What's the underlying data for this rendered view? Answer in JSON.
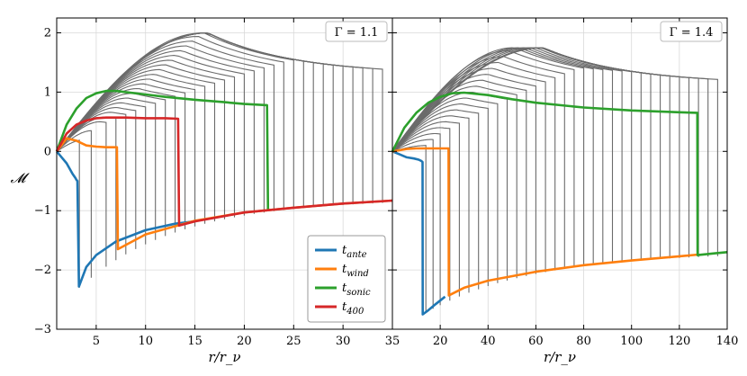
{
  "chart_data": [
    {
      "type": "line",
      "panel": "left",
      "gamma_label": "Γ = 1.1",
      "xlabel": "r/r_ν",
      "ylabel": "𝓜",
      "xlim": [
        1,
        35
      ],
      "ylim": [
        -3,
        2.25
      ],
      "xticks": [
        5,
        10,
        15,
        20,
        25,
        30,
        35
      ],
      "yticks": [
        -3,
        -2,
        -1,
        0,
        1,
        2
      ],
      "grid": true,
      "background_profiles": {
        "shock_x": [
          3.3,
          4.5,
          6.0,
          7.0,
          8.0,
          9.0,
          10.0,
          11.0,
          12.0,
          13.0,
          14.0,
          15.0,
          16.0,
          17.0,
          18.0,
          19.0,
          20.0,
          21.0,
          22.0,
          23.0,
          24.0,
          25.0,
          26.0,
          27.0,
          28.0,
          29.0,
          30.0,
          31.0,
          32.0,
          33.0,
          34.0
        ],
        "peak_values": [
          0.2,
          0.35,
          0.5,
          0.58,
          0.66,
          0.74,
          0.82,
          0.9,
          0.98,
          1.06,
          1.14,
          1.22,
          1.3,
          1.38,
          1.46,
          1.54,
          1.62,
          1.7,
          1.78,
          1.86,
          1.94,
          2.0
        ]
      },
      "series": [
        {
          "name": "t_ante",
          "color": "#1f77b4",
          "x": [
            1,
            1.5,
            2,
            2.6,
            2.9,
            3.0,
            3.1,
            3.25,
            4,
            5,
            7,
            10,
            13,
            15
          ],
          "y": [
            0,
            -0.1,
            -0.2,
            -0.38,
            -0.45,
            -0.48,
            -0.5,
            -2.28,
            -1.95,
            -1.75,
            -1.52,
            -1.33,
            -1.22,
            -1.18
          ]
        },
        {
          "name": "t_wind",
          "color": "#ff7f0e",
          "x": [
            1,
            2,
            3,
            4,
            5,
            6,
            7.1,
            7.2,
            10,
            15,
            20,
            25,
            30,
            35
          ],
          "y": [
            0,
            0.22,
            0.18,
            0.1,
            0.08,
            0.07,
            0.07,
            -1.65,
            -1.4,
            -1.17,
            -1.03,
            -0.95,
            -0.88,
            -0.83
          ]
        },
        {
          "name": "t_sonic",
          "color": "#2ca02c",
          "x": [
            1,
            2,
            3,
            4,
            5,
            6,
            7,
            8,
            10,
            12,
            15,
            18,
            20,
            22.3,
            22.4
          ],
          "y": [
            0,
            0.45,
            0.72,
            0.9,
            0.98,
            1.02,
            1.02,
            1.0,
            0.96,
            0.92,
            0.87,
            0.83,
            0.8,
            0.78,
            -1.0
          ]
        },
        {
          "name": "t_400",
          "color": "#d62728",
          "x": [
            1,
            2,
            3,
            4,
            5,
            6,
            8,
            10,
            12,
            13.3,
            13.4,
            15,
            20,
            25,
            30,
            35
          ],
          "y": [
            0,
            0.3,
            0.45,
            0.52,
            0.56,
            0.57,
            0.57,
            0.56,
            0.56,
            0.55,
            -1.25,
            -1.18,
            -1.03,
            -0.95,
            -0.88,
            -0.83
          ]
        }
      ],
      "legend": {
        "position": "bottom-right",
        "entries": [
          "t_ante",
          "t_wind",
          "t_sonic",
          "t_400"
        ]
      }
    },
    {
      "type": "line",
      "panel": "right",
      "gamma_label": "Γ = 1.4",
      "xlabel": "r/r_ν",
      "xlim": [
        0,
        140
      ],
      "ylim": [
        -3,
        2.25
      ],
      "xticks": [
        20,
        40,
        60,
        80,
        100,
        120,
        140
      ],
      "yticks": [
        -3,
        -2,
        -1,
        0,
        1,
        2
      ],
      "grid": true,
      "background_profiles": {
        "shock_x": [
          14,
          17,
          20,
          24,
          28,
          32,
          36,
          40,
          44,
          48,
          52,
          56,
          60,
          64,
          68,
          72,
          76,
          80,
          84,
          88,
          92,
          96,
          100,
          104,
          108,
          112,
          116,
          120,
          124,
          128,
          132,
          136
        ],
        "peak_values": [
          0.1,
          0.2,
          0.3,
          0.4,
          0.5,
          0.6,
          0.7,
          0.8,
          0.9,
          1.0,
          1.1,
          1.2,
          1.3,
          1.4,
          1.5,
          1.6,
          1.7,
          1.75
        ]
      },
      "series": [
        {
          "name": "t_ante",
          "color": "#1f77b4",
          "x": [
            0,
            3,
            6,
            9,
            11,
            12,
            12.6,
            12.7,
            15,
            18,
            22
          ],
          "y": [
            0,
            -0.05,
            -0.1,
            -0.12,
            -0.14,
            -0.16,
            -0.18,
            -2.75,
            -2.68,
            -2.58,
            -2.45
          ]
        },
        {
          "name": "t_wind",
          "color": "#ff7f0e",
          "x": [
            0,
            3,
            6,
            10,
            15,
            20,
            23.5,
            23.6,
            30,
            40,
            60,
            80,
            100,
            120,
            128
          ],
          "y": [
            0,
            0.02,
            0.04,
            0.05,
            0.05,
            0.05,
            0.05,
            -2.43,
            -2.3,
            -2.18,
            -2.03,
            -1.92,
            -1.84,
            -1.77,
            -1.74
          ]
        },
        {
          "name": "t_sonic",
          "color": "#2ca02c",
          "x": [
            0,
            5,
            10,
            15,
            20,
            25,
            30,
            40,
            50,
            60,
            80,
            100,
            120,
            127.5,
            127.6,
            135,
            140
          ],
          "y": [
            0,
            0.4,
            0.65,
            0.82,
            0.92,
            0.98,
            0.99,
            0.95,
            0.88,
            0.82,
            0.74,
            0.69,
            0.66,
            0.65,
            -1.75,
            -1.72,
            -1.7
          ]
        }
      ]
    }
  ]
}
